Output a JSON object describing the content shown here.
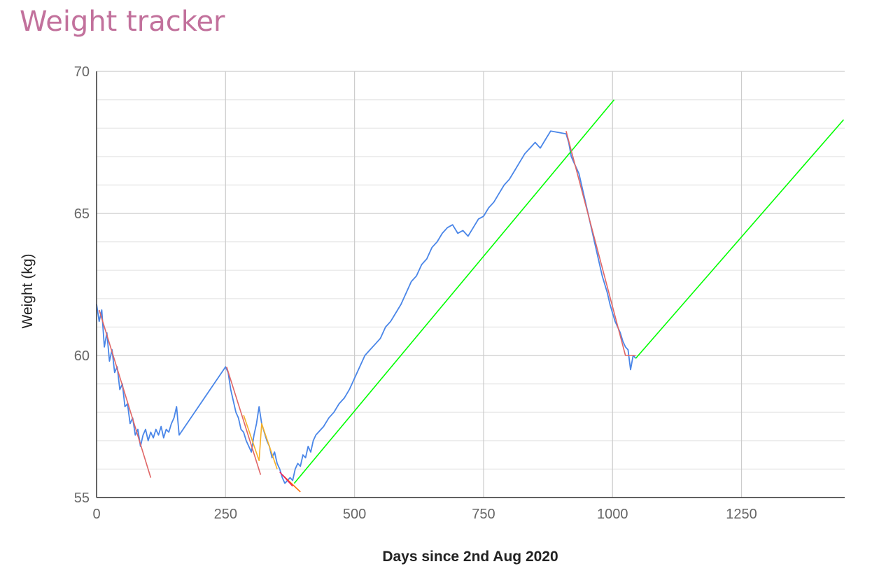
{
  "chart_data": {
    "type": "line",
    "title": "Weight tracker",
    "xlabel": "Days since 2nd Aug 2020",
    "ylabel": "Weight (kg)",
    "xlim": [
      0,
      1450
    ],
    "ylim": [
      55,
      70
    ],
    "x_ticks": [
      0,
      250,
      500,
      750,
      1000,
      1250
    ],
    "y_ticks": [
      55,
      60,
      65,
      70
    ],
    "grid": true,
    "legend": "none",
    "series": [
      {
        "color": "#4a86e8",
        "style": "line",
        "points": [
          [
            0,
            61.8
          ],
          [
            5,
            61.2
          ],
          [
            10,
            61.6
          ],
          [
            15,
            60.3
          ],
          [
            20,
            60.8
          ],
          [
            25,
            59.8
          ],
          [
            30,
            60.2
          ],
          [
            35,
            59.4
          ],
          [
            40,
            59.6
          ],
          [
            45,
            58.8
          ],
          [
            50,
            59.0
          ],
          [
            55,
            58.2
          ],
          [
            60,
            58.3
          ],
          [
            65,
            57.6
          ],
          [
            70,
            57.8
          ],
          [
            75,
            57.2
          ],
          [
            80,
            57.4
          ],
          [
            85,
            56.8
          ],
          [
            90,
            57.2
          ],
          [
            95,
            57.4
          ],
          [
            100,
            57.0
          ],
          [
            105,
            57.3
          ],
          [
            110,
            57.1
          ],
          [
            115,
            57.4
          ],
          [
            120,
            57.2
          ],
          [
            125,
            57.5
          ],
          [
            130,
            57.1
          ],
          [
            135,
            57.4
          ],
          [
            140,
            57.3
          ],
          [
            145,
            57.6
          ],
          [
            150,
            57.8
          ],
          [
            155,
            58.2
          ],
          [
            160,
            57.2
          ],
          [
            250,
            59.6
          ],
          [
            255,
            59.4
          ],
          [
            260,
            58.8
          ],
          [
            265,
            58.4
          ],
          [
            270,
            58.0
          ],
          [
            275,
            57.8
          ],
          [
            280,
            57.4
          ],
          [
            285,
            57.3
          ],
          [
            290,
            57.0
          ],
          [
            295,
            56.8
          ],
          [
            300,
            56.6
          ],
          [
            305,
            57.2
          ],
          [
            310,
            57.6
          ],
          [
            315,
            58.2
          ],
          [
            320,
            57.6
          ],
          [
            325,
            57.3
          ],
          [
            330,
            57.0
          ],
          [
            335,
            56.8
          ],
          [
            340,
            56.4
          ],
          [
            345,
            56.6
          ],
          [
            350,
            56.2
          ],
          [
            355,
            56.0
          ],
          [
            360,
            55.7
          ],
          [
            365,
            55.5
          ],
          [
            370,
            55.6
          ],
          [
            375,
            55.7
          ],
          [
            380,
            55.6
          ],
          [
            385,
            56.0
          ],
          [
            390,
            56.2
          ],
          [
            395,
            56.1
          ],
          [
            400,
            56.5
          ],
          [
            405,
            56.4
          ],
          [
            410,
            56.8
          ],
          [
            415,
            56.6
          ],
          [
            420,
            57.0
          ],
          [
            425,
            57.2
          ],
          [
            430,
            57.3
          ],
          [
            440,
            57.5
          ],
          [
            450,
            57.8
          ],
          [
            460,
            58.0
          ],
          [
            470,
            58.3
          ],
          [
            480,
            58.5
          ],
          [
            490,
            58.8
          ],
          [
            500,
            59.2
          ],
          [
            510,
            59.6
          ],
          [
            520,
            60.0
          ],
          [
            530,
            60.2
          ],
          [
            540,
            60.4
          ],
          [
            550,
            60.6
          ],
          [
            560,
            61.0
          ],
          [
            570,
            61.2
          ],
          [
            580,
            61.5
          ],
          [
            590,
            61.8
          ],
          [
            600,
            62.2
          ],
          [
            610,
            62.6
          ],
          [
            620,
            62.8
          ],
          [
            630,
            63.2
          ],
          [
            640,
            63.4
          ],
          [
            650,
            63.8
          ],
          [
            660,
            64.0
          ],
          [
            670,
            64.3
          ],
          [
            680,
            64.5
          ],
          [
            690,
            64.6
          ],
          [
            700,
            64.3
          ],
          [
            710,
            64.4
          ],
          [
            720,
            64.2
          ],
          [
            730,
            64.5
          ],
          [
            740,
            64.8
          ],
          [
            750,
            64.9
          ],
          [
            760,
            65.2
          ],
          [
            770,
            65.4
          ],
          [
            780,
            65.7
          ],
          [
            790,
            66.0
          ],
          [
            800,
            66.2
          ],
          [
            810,
            66.5
          ],
          [
            820,
            66.8
          ],
          [
            830,
            67.1
          ],
          [
            840,
            67.3
          ],
          [
            850,
            67.5
          ],
          [
            860,
            67.3
          ],
          [
            870,
            67.6
          ],
          [
            880,
            67.9
          ],
          [
            910,
            67.8
          ],
          [
            915,
            67.5
          ],
          [
            920,
            67.0
          ],
          [
            925,
            66.8
          ],
          [
            930,
            66.6
          ],
          [
            935,
            66.4
          ],
          [
            940,
            66.0
          ],
          [
            945,
            65.6
          ],
          [
            950,
            65.2
          ],
          [
            955,
            64.8
          ],
          [
            960,
            64.4
          ],
          [
            965,
            64.0
          ],
          [
            970,
            63.6
          ],
          [
            975,
            63.2
          ],
          [
            980,
            62.8
          ],
          [
            985,
            62.5
          ],
          [
            990,
            62.2
          ],
          [
            995,
            61.8
          ],
          [
            1000,
            61.5
          ],
          [
            1005,
            61.2
          ],
          [
            1010,
            61.0
          ],
          [
            1015,
            60.8
          ],
          [
            1020,
            60.5
          ],
          [
            1025,
            60.3
          ],
          [
            1030,
            60.2
          ],
          [
            1035,
            59.5
          ],
          [
            1040,
            60.0
          ],
          [
            1045,
            59.9
          ]
        ]
      },
      {
        "color": "#e06666",
        "style": "line",
        "points": [
          [
            5,
            61.6
          ],
          [
            105,
            55.7
          ]
        ]
      },
      {
        "color": "#e06666",
        "style": "line",
        "points": [
          [
            252,
            59.6
          ],
          [
            318,
            55.8
          ]
        ]
      },
      {
        "color": "#f6b026",
        "style": "line",
        "points": [
          [
            285,
            57.9
          ],
          [
            315,
            56.3
          ],
          [
            320,
            57.6
          ],
          [
            350,
            56.0
          ]
        ]
      },
      {
        "color": "#ff6d01",
        "style": "line",
        "points": [
          [
            360,
            55.8
          ],
          [
            395,
            55.2
          ]
        ]
      },
      {
        "color": "#e91e63",
        "style": "line",
        "points": [
          [
            355,
            55.9
          ],
          [
            380,
            55.4
          ]
        ]
      },
      {
        "color": "#00ff00",
        "style": "line",
        "points": [
          [
            383,
            55.5
          ],
          [
            1003,
            69.0
          ]
        ]
      },
      {
        "color": "#00ff00",
        "style": "line",
        "points": [
          [
            1045,
            59.9
          ],
          [
            1448,
            68.3
          ]
        ]
      },
      {
        "color": "#e06666",
        "style": "line",
        "points": [
          [
            910,
            67.9
          ],
          [
            1025,
            60.0
          ],
          [
            1045,
            60.0
          ]
        ]
      }
    ]
  }
}
